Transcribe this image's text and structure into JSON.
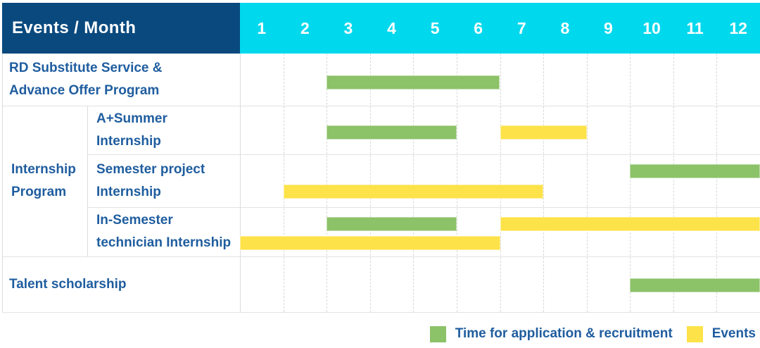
{
  "colors": {
    "navy": "#09497e",
    "cyan": "#00d8ed",
    "green": "#8cc268",
    "yellow": "#fde249",
    "text_blue": "#1f5d9f",
    "grid_gray": "#dcdcdc"
  },
  "table": {
    "corner_title": "Events / Month",
    "months": [
      "1",
      "2",
      "3",
      "4",
      "5",
      "6",
      "7",
      "8",
      "9",
      "10",
      "11",
      "12"
    ],
    "group_label_lines": [
      "Internship",
      "Program"
    ],
    "rows": [
      {
        "id": "rd-substitute-service",
        "label_lines": [
          "RD Substitute Service &",
          "Advance Offer Program"
        ]
      },
      {
        "id": "a-plus-summer-internship",
        "label_lines": [
          "A+Summer",
          "Internship"
        ]
      },
      {
        "id": "semester-project-internship",
        "label_lines": [
          "Semester project",
          "Internship"
        ]
      },
      {
        "id": "in-semester-technician-internship",
        "label_lines": [
          "In-Semester",
          "technician Internship"
        ]
      },
      {
        "id": "talent-scholarship",
        "label_lines": [
          "Talent scholarship"
        ]
      }
    ]
  },
  "legend": {
    "items": [
      {
        "swatch": "green",
        "label": "Time for application & recruitment"
      },
      {
        "swatch": "yellow",
        "label": "Events"
      }
    ]
  },
  "chart_data": {
    "type": "bar",
    "subtype": "gantt",
    "title": "Events / Month",
    "x_axis": {
      "label": "Month",
      "categories": [
        1,
        2,
        3,
        4,
        5,
        6,
        7,
        8,
        9,
        10,
        11,
        12
      ],
      "range": [
        1,
        12
      ]
    },
    "grid": true,
    "legend_position": "bottom-right",
    "series_legend": [
      "Time for application & recruitment",
      "Events"
    ],
    "rows": [
      {
        "group": "",
        "event": "RD Substitute Service & Advance Offer Program",
        "bars": [
          {
            "series": "Time for application & recruitment",
            "start_month": 3,
            "end_month": 6,
            "lane": "center"
          }
        ]
      },
      {
        "group": "Internship Program",
        "event": "A+Summer Internship",
        "bars": [
          {
            "series": "Time for application & recruitment",
            "start_month": 3,
            "end_month": 5,
            "lane": "center"
          },
          {
            "series": "Events",
            "start_month": 7,
            "end_month": 8,
            "lane": "center"
          }
        ]
      },
      {
        "group": "Internship Program",
        "event": "Semester project Internship",
        "bars": [
          {
            "series": "Time for application & recruitment",
            "start_month": 10,
            "end_month": 12,
            "lane": "top"
          },
          {
            "series": "Events",
            "start_month": 2,
            "end_month": 7,
            "lane": "bottom"
          }
        ]
      },
      {
        "group": "Internship Program",
        "event": "In-Semester technician Internship",
        "bars": [
          {
            "series": "Time for application & recruitment",
            "start_month": 3,
            "end_month": 5,
            "lane": "top"
          },
          {
            "series": "Events",
            "start_month": 7,
            "end_month": 12,
            "lane": "top"
          },
          {
            "series": "Events",
            "start_month": 1,
            "end_month": 6,
            "lane": "bottom"
          }
        ]
      },
      {
        "group": "",
        "event": "Talent scholarship",
        "bars": [
          {
            "series": "Time for application & recruitment",
            "start_month": 10,
            "end_month": 12,
            "lane": "center"
          }
        ]
      }
    ]
  }
}
